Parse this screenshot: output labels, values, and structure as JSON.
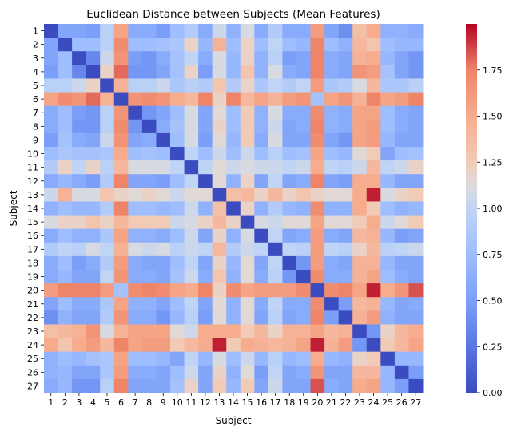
{
  "chart_data": {
    "type": "heatmap",
    "title": "Euclidean Distance between Subjects (Mean Features)",
    "xlabel": "Subject",
    "ylabel": "Subject",
    "x_categories": [
      "1",
      "2",
      "3",
      "4",
      "5",
      "6",
      "7",
      "8",
      "9",
      "10",
      "11",
      "12",
      "13",
      "14",
      "15",
      "16",
      "17",
      "18",
      "19",
      "20",
      "21",
      "22",
      "23",
      "24",
      "25",
      "26",
      "27"
    ],
    "y_categories": [
      "1",
      "2",
      "3",
      "4",
      "5",
      "6",
      "7",
      "8",
      "9",
      "10",
      "11",
      "12",
      "13",
      "14",
      "15",
      "16",
      "17",
      "18",
      "19",
      "20",
      "21",
      "22",
      "23",
      "24",
      "25",
      "26",
      "27"
    ],
    "colormap": "coolwarm",
    "color_range": [
      0,
      2.0
    ],
    "colorbar_ticks": [
      "0.00",
      "0.25",
      "0.50",
      "0.75",
      "1.00",
      "1.25",
      "1.50",
      "1.75"
    ],
    "colorbar_tick_values": [
      0,
      0.25,
      0.5,
      0.75,
      1.0,
      1.25,
      1.5,
      1.75
    ],
    "grid": false,
    "values": [
      [
        0.0,
        0.55,
        0.55,
        0.5,
        0.95,
        1.55,
        0.6,
        0.6,
        0.5,
        0.75,
        0.9,
        0.6,
        1.05,
        0.65,
        1.1,
        0.6,
        0.9,
        0.6,
        0.6,
        1.6,
        0.55,
        0.4,
        1.35,
        1.5,
        0.65,
        0.65,
        0.6
      ],
      [
        0.55,
        0.0,
        0.75,
        0.75,
        0.95,
        1.7,
        0.75,
        0.75,
        0.8,
        0.85,
        1.2,
        0.7,
        1.45,
        0.75,
        1.2,
        0.75,
        1.0,
        0.75,
        0.7,
        1.75,
        0.75,
        0.65,
        1.4,
        1.3,
        0.75,
        0.7,
        0.7
      ],
      [
        0.55,
        0.75,
        0.0,
        0.35,
        1.05,
        1.65,
        0.5,
        0.45,
        0.6,
        0.8,
        1.0,
        0.6,
        1.1,
        0.7,
        1.2,
        0.65,
        0.95,
        0.5,
        0.55,
        1.75,
        0.6,
        0.55,
        1.45,
        1.5,
        0.7,
        0.55,
        0.45
      ],
      [
        0.5,
        0.75,
        0.35,
        0.0,
        1.2,
        1.8,
        0.45,
        0.45,
        0.55,
        0.8,
        1.2,
        0.5,
        1.1,
        0.7,
        1.3,
        0.65,
        1.1,
        0.6,
        0.55,
        1.75,
        0.6,
        0.55,
        1.65,
        1.6,
        0.8,
        0.55,
        0.45
      ],
      [
        0.95,
        0.95,
        1.05,
        1.2,
        0.0,
        1.45,
        0.95,
        0.95,
        1.05,
        0.85,
        0.95,
        0.9,
        1.3,
        0.9,
        1.2,
        0.85,
        1.0,
        0.9,
        1.0,
        1.6,
        0.85,
        0.9,
        1.1,
        1.4,
        0.85,
        0.85,
        0.95
      ],
      [
        1.55,
        1.7,
        1.65,
        1.8,
        1.45,
        0.0,
        1.65,
        1.7,
        1.65,
        1.5,
        1.4,
        1.75,
        1.2,
        1.75,
        1.4,
        1.55,
        1.45,
        1.6,
        1.65,
        0.8,
        1.55,
        1.65,
        1.45,
        1.75,
        1.55,
        1.6,
        1.75
      ],
      [
        0.6,
        0.75,
        0.5,
        0.45,
        0.95,
        1.65,
        0.0,
        0.45,
        0.55,
        0.75,
        1.1,
        0.55,
        1.15,
        0.75,
        1.25,
        0.65,
        1.1,
        0.6,
        0.6,
        1.7,
        0.65,
        0.6,
        1.55,
        1.55,
        0.75,
        0.6,
        0.55
      ],
      [
        0.6,
        0.75,
        0.45,
        0.45,
        0.95,
        1.7,
        0.45,
        0.0,
        0.6,
        0.8,
        1.1,
        0.55,
        1.2,
        0.75,
        1.25,
        0.65,
        1.05,
        0.55,
        0.6,
        1.75,
        0.65,
        0.6,
        1.55,
        1.6,
        0.75,
        0.6,
        0.55
      ],
      [
        0.5,
        0.8,
        0.6,
        0.55,
        1.05,
        1.65,
        0.55,
        0.6,
        0.0,
        0.75,
        1.1,
        0.5,
        1.15,
        0.7,
        1.25,
        0.6,
        1.1,
        0.55,
        0.55,
        1.7,
        0.55,
        0.45,
        1.55,
        1.6,
        0.7,
        0.55,
        0.55
      ],
      [
        0.75,
        0.85,
        0.8,
        0.8,
        0.85,
        1.5,
        0.75,
        0.8,
        0.75,
        0.0,
        1.0,
        0.75,
        1.05,
        0.75,
        1.05,
        0.75,
        0.95,
        0.75,
        0.8,
        1.55,
        0.75,
        0.7,
        1.15,
        1.25,
        0.55,
        0.75,
        0.8
      ],
      [
        0.9,
        1.2,
        1.0,
        1.2,
        0.95,
        1.4,
        1.1,
        1.1,
        1.1,
        1.0,
        0.0,
        1.0,
        1.15,
        1.05,
        1.1,
        1.05,
        1.05,
        1.0,
        1.05,
        1.5,
        1.0,
        0.95,
        1.05,
        1.4,
        1.0,
        1.05,
        1.2
      ],
      [
        0.6,
        0.7,
        0.6,
        0.5,
        0.9,
        1.75,
        0.55,
        0.55,
        0.5,
        0.75,
        1.0,
        0.0,
        1.15,
        0.65,
        1.2,
        0.55,
        1.0,
        0.55,
        0.6,
        1.75,
        0.55,
        0.5,
        1.5,
        1.5,
        0.7,
        0.55,
        0.55
      ],
      [
        1.05,
        1.45,
        1.1,
        1.1,
        1.3,
        1.2,
        1.15,
        1.2,
        1.15,
        1.05,
        1.15,
        1.15,
        0.0,
        1.35,
        1.4,
        1.2,
        1.4,
        1.2,
        1.3,
        1.2,
        1.15,
        1.15,
        1.5,
        1.95,
        1.1,
        1.2,
        1.25
      ],
      [
        0.65,
        0.75,
        0.7,
        0.7,
        0.9,
        1.75,
        0.75,
        0.75,
        0.7,
        0.75,
        1.05,
        0.65,
        1.35,
        0.0,
        1.2,
        0.65,
        0.9,
        0.7,
        0.65,
        1.7,
        0.65,
        0.65,
        1.5,
        1.25,
        0.75,
        0.65,
        0.7
      ],
      [
        1.1,
        1.2,
        1.2,
        1.3,
        1.2,
        1.4,
        1.25,
        1.25,
        1.25,
        1.05,
        1.1,
        1.2,
        1.4,
        1.2,
        0.0,
        1.1,
        1.05,
        1.15,
        1.15,
        1.55,
        1.15,
        1.15,
        1.25,
        1.5,
        1.05,
        1.15,
        1.25
      ],
      [
        0.6,
        0.75,
        0.65,
        0.65,
        0.85,
        1.55,
        0.65,
        0.65,
        0.6,
        0.75,
        1.05,
        0.55,
        1.2,
        0.65,
        1.1,
        0.0,
        1.0,
        0.55,
        0.6,
        1.6,
        0.6,
        0.55,
        1.4,
        1.45,
        0.7,
        0.5,
        0.55
      ],
      [
        0.9,
        1.0,
        0.95,
        1.1,
        1.0,
        1.45,
        1.1,
        1.05,
        1.1,
        0.95,
        1.05,
        1.0,
        1.4,
        0.9,
        1.05,
        1.0,
        0.0,
        1.0,
        0.95,
        1.6,
        1.0,
        0.95,
        1.2,
        1.4,
        0.95,
        1.0,
        1.05
      ],
      [
        0.6,
        0.75,
        0.5,
        0.6,
        0.9,
        1.6,
        0.6,
        0.55,
        0.55,
        0.75,
        1.0,
        0.55,
        1.2,
        0.7,
        1.15,
        0.55,
        1.0,
        0.0,
        0.45,
        1.6,
        0.6,
        0.55,
        1.45,
        1.45,
        0.7,
        0.55,
        0.55
      ],
      [
        0.6,
        0.7,
        0.55,
        0.55,
        1.0,
        1.65,
        0.6,
        0.6,
        0.55,
        0.8,
        1.05,
        0.6,
        1.3,
        0.65,
        1.15,
        0.6,
        0.95,
        0.45,
        0.0,
        1.7,
        0.6,
        0.6,
        1.45,
        1.55,
        0.75,
        0.6,
        0.55
      ],
      [
        1.6,
        1.75,
        1.75,
        1.75,
        1.6,
        0.8,
        1.7,
        1.75,
        1.7,
        1.55,
        1.5,
        1.75,
        1.2,
        1.7,
        1.55,
        1.6,
        1.6,
        1.6,
        1.7,
        0.0,
        1.7,
        1.75,
        1.55,
        1.95,
        1.5,
        1.65,
        1.85
      ],
      [
        0.55,
        0.75,
        0.6,
        0.6,
        0.85,
        1.55,
        0.65,
        0.65,
        0.55,
        0.75,
        1.0,
        0.55,
        1.15,
        0.65,
        1.15,
        0.6,
        1.0,
        0.6,
        0.6,
        1.7,
        0.0,
        0.5,
        1.4,
        1.45,
        0.7,
        0.55,
        0.6
      ],
      [
        0.4,
        0.65,
        0.55,
        0.55,
        0.9,
        1.65,
        0.6,
        0.6,
        0.45,
        0.7,
        0.95,
        0.5,
        1.15,
        0.65,
        1.15,
        0.55,
        0.95,
        0.55,
        0.6,
        1.75,
        0.5,
        0.0,
        1.45,
        1.6,
        0.65,
        0.55,
        0.55
      ],
      [
        1.35,
        1.4,
        1.45,
        1.65,
        1.1,
        1.45,
        1.55,
        1.55,
        1.55,
        1.15,
        1.05,
        1.5,
        1.5,
        1.5,
        1.25,
        1.4,
        1.2,
        1.45,
        1.45,
        1.55,
        1.4,
        1.45,
        0.0,
        0.45,
        1.2,
        1.4,
        1.5
      ],
      [
        1.5,
        1.3,
        1.5,
        1.6,
        1.4,
        1.75,
        1.55,
        1.6,
        1.6,
        1.25,
        1.4,
        1.5,
        1.95,
        1.25,
        1.5,
        1.45,
        1.4,
        1.45,
        1.55,
        1.95,
        1.45,
        1.6,
        0.45,
        0.0,
        1.25,
        1.4,
        1.55
      ],
      [
        0.65,
        0.75,
        0.7,
        0.8,
        0.85,
        1.55,
        0.75,
        0.75,
        0.7,
        0.55,
        1.0,
        0.7,
        1.1,
        0.75,
        1.05,
        0.7,
        0.95,
        0.7,
        0.75,
        1.5,
        0.7,
        0.65,
        1.2,
        1.25,
        0.0,
        0.7,
        0.7
      ],
      [
        0.65,
        0.7,
        0.55,
        0.55,
        0.85,
        1.6,
        0.6,
        0.6,
        0.55,
        0.75,
        1.05,
        0.55,
        1.2,
        0.65,
        1.15,
        0.5,
        1.0,
        0.55,
        0.6,
        1.65,
        0.55,
        0.55,
        1.4,
        1.4,
        0.7,
        0.0,
        0.5
      ],
      [
        0.6,
        0.7,
        0.45,
        0.45,
        0.95,
        1.75,
        0.55,
        0.55,
        0.55,
        0.8,
        1.2,
        0.55,
        1.25,
        0.7,
        1.25,
        0.55,
        1.05,
        0.55,
        0.55,
        1.85,
        0.6,
        0.55,
        1.5,
        1.55,
        0.7,
        0.5,
        0.0
      ]
    ]
  }
}
